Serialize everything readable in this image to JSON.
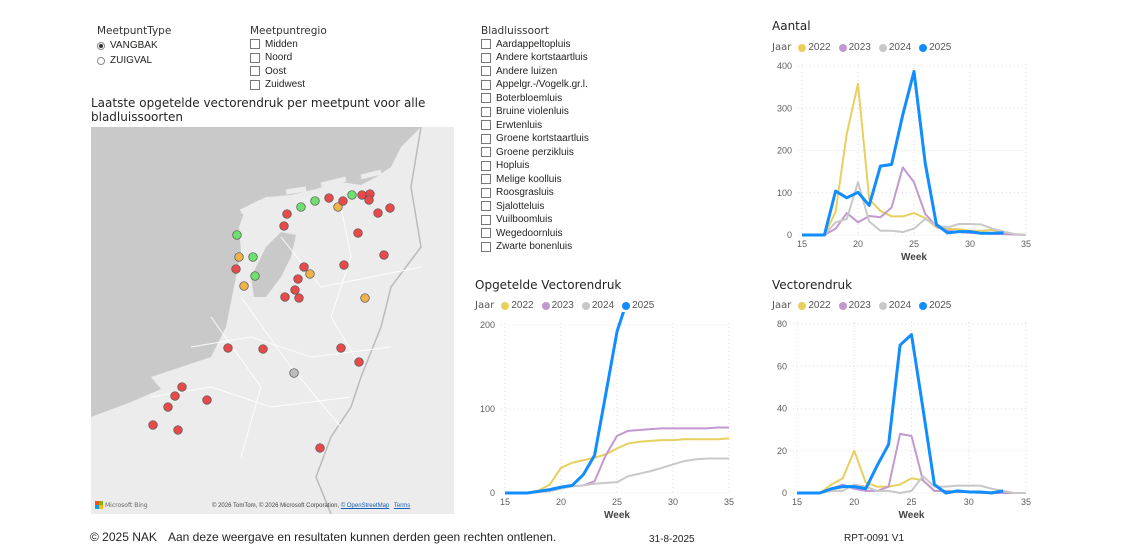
{
  "filters": {
    "meetpunttype": {
      "title": "MeetpuntType",
      "options": [
        {
          "label": "VANGBAK",
          "selected": true
        },
        {
          "label": "ZUIGVAL",
          "selected": false
        }
      ]
    },
    "meetpuntregio": {
      "title": "Meetpuntregio",
      "options": [
        "Midden",
        "Noord",
        "Oost",
        "Zuidwest"
      ]
    },
    "bladluissoort": {
      "title": "Bladluissoort",
      "options": [
        "Aardappeltopluis",
        "Andere kortstaartluis",
        "Andere luizen",
        "Appelgr.-/Vogelk.gr.l.",
        "Boterbloemluis",
        "Bruine violenluis",
        "Erwtenluis",
        "Groene kortstaartluis",
        "Groene perzikluis",
        "Hopluis",
        "Melige koolluis",
        "Roosgrasluis",
        "Sjalotteluis",
        "Vuilboomluis",
        "Wegedoornluis",
        "Zwarte bonenluis"
      ]
    }
  },
  "map": {
    "title": "Laatste opgetelde vectorendruk per meetpunt voor alle bladluissoorten",
    "logo": "Microsoft Bing",
    "attribution": "© 2026 TomTom, © 2026 Microsoft Corporation,",
    "osm_link": "© OpenStreetMap",
    "terms_link": "Terms",
    "marker_colors": {
      "red": "#e84a4a",
      "orange": "#f0b24a",
      "green": "#6ee06e",
      "gray": "#bdbdbd"
    }
  },
  "legend_label": "Jaar",
  "series_colors": {
    "2022": "#e8cf5e",
    "2023": "#c398cf",
    "2024": "#c8c8c8",
    "2025": "#118dff"
  },
  "chart_data": [
    {
      "type": "line",
      "title": "Aantal",
      "xlabel": "Week",
      "ylabel": "",
      "xlim": [
        15,
        35
      ],
      "ylim": [
        0,
        400
      ],
      "xticks": [
        15,
        20,
        25,
        30,
        35
      ],
      "yticks": [
        0,
        100,
        200,
        300,
        400
      ],
      "grid": true,
      "legend": "top-left",
      "series": [
        {
          "name": "2022",
          "x": [
            15,
            16,
            17,
            18,
            19,
            20,
            21,
            22,
            23,
            24,
            25,
            26,
            27,
            28,
            29,
            30,
            31,
            32,
            33,
            34,
            35
          ],
          "values": [
            0,
            0,
            0,
            55,
            240,
            358,
            85,
            57,
            44,
            44,
            52,
            40,
            18,
            14,
            14,
            10,
            10,
            12,
            5,
            2,
            0
          ]
        },
        {
          "name": "2023",
          "x": [
            15,
            16,
            17,
            18,
            19,
            20,
            21,
            22,
            23,
            24,
            25,
            26,
            27,
            28,
            29,
            30,
            31,
            32,
            33,
            34,
            35
          ],
          "values": [
            0,
            0,
            0,
            15,
            52,
            30,
            45,
            42,
            65,
            160,
            125,
            50,
            20,
            10,
            7,
            5,
            4,
            3,
            2,
            1,
            0
          ]
        },
        {
          "name": "2024",
          "x": [
            15,
            16,
            17,
            18,
            19,
            20,
            21,
            22,
            23,
            24,
            25,
            26,
            27,
            28,
            29,
            30,
            31,
            32,
            33,
            34,
            35
          ],
          "values": [
            0,
            0,
            0,
            30,
            38,
            125,
            32,
            10,
            10,
            7,
            15,
            38,
            22,
            18,
            26,
            26,
            25,
            15,
            8,
            2,
            0
          ]
        },
        {
          "name": "2025",
          "x": [
            15,
            16,
            17,
            18,
            19,
            20,
            21,
            22,
            23,
            24,
            25,
            26,
            27,
            28,
            29,
            30,
            31,
            32,
            33
          ],
          "values": [
            0,
            0,
            0,
            104,
            88,
            101,
            70,
            163,
            167,
            285,
            387,
            170,
            25,
            5,
            8,
            8,
            4,
            4,
            5
          ]
        }
      ]
    },
    {
      "type": "line",
      "title": "Opgetelde Vectorendruk",
      "xlabel": "Week",
      "ylabel": "",
      "xlim": [
        15,
        35
      ],
      "ylim": [
        0,
        250
      ],
      "xticks": [
        15,
        20,
        25,
        30,
        35
      ],
      "yticks": [
        0,
        100,
        200
      ],
      "grid": true,
      "legend": "top-left",
      "series": [
        {
          "name": "2022",
          "x": [
            15,
            16,
            17,
            18,
            19,
            20,
            21,
            22,
            23,
            24,
            25,
            26,
            27,
            28,
            29,
            30,
            31,
            32,
            33,
            34,
            35
          ],
          "values": [
            0,
            0,
            0,
            3,
            10,
            30,
            36,
            39,
            42,
            46,
            53,
            59,
            61,
            62,
            63,
            63,
            64,
            64,
            64,
            64,
            65
          ]
        },
        {
          "name": "2023",
          "x": [
            15,
            16,
            17,
            18,
            19,
            20,
            21,
            22,
            23,
            24,
            25,
            26,
            27,
            28,
            29,
            30,
            31,
            32,
            33,
            34,
            35
          ],
          "values": [
            0,
            0,
            0,
            1,
            3,
            6,
            8,
            9,
            14,
            45,
            68,
            74,
            75,
            76,
            77,
            77,
            77,
            77,
            77,
            78,
            78
          ]
        },
        {
          "name": "2024",
          "x": [
            15,
            16,
            17,
            18,
            19,
            20,
            21,
            22,
            23,
            24,
            25,
            26,
            27,
            28,
            29,
            30,
            31,
            32,
            33,
            34,
            35
          ],
          "values": [
            0,
            0,
            0,
            1,
            2,
            5,
            8,
            9,
            11,
            12,
            13,
            20,
            23,
            26,
            30,
            34,
            38,
            40,
            41,
            41,
            41
          ]
        },
        {
          "name": "2025",
          "x": [
            15,
            16,
            17,
            18,
            19,
            20,
            21,
            22,
            23,
            24,
            25,
            26,
            27,
            28,
            29,
            30,
            31,
            32,
            33
          ],
          "values": [
            0,
            0,
            0,
            2,
            4,
            7,
            9,
            22,
            45,
            118,
            192,
            233,
            236,
            237,
            238,
            239,
            239,
            239,
            240
          ]
        }
      ]
    },
    {
      "type": "line",
      "title": "Vectorendruk",
      "xlabel": "Week",
      "ylabel": "",
      "xlim": [
        15,
        35
      ],
      "ylim": [
        0,
        80
      ],
      "xticks": [
        15,
        20,
        25,
        30,
        35
      ],
      "yticks": [
        0,
        20,
        40,
        60,
        80
      ],
      "grid": true,
      "legend": "top-left",
      "series": [
        {
          "name": "2022",
          "x": [
            15,
            16,
            17,
            18,
            19,
            20,
            21,
            22,
            23,
            24,
            25,
            26,
            27,
            28,
            29,
            30,
            31,
            32,
            33,
            34,
            35
          ],
          "values": [
            0,
            0,
            0,
            4,
            7,
            20,
            5,
            3,
            3,
            4,
            7,
            6,
            1,
            1,
            0.5,
            0.5,
            0.5,
            0.5,
            0,
            0,
            0
          ]
        },
        {
          "name": "2023",
          "x": [
            15,
            16,
            17,
            18,
            19,
            20,
            21,
            22,
            23,
            24,
            25,
            26,
            27,
            28,
            29,
            30,
            31,
            32,
            33,
            34,
            35
          ],
          "values": [
            0,
            0,
            0,
            2,
            4,
            2,
            1,
            1,
            3,
            28,
            27,
            6,
            1,
            1,
            0.5,
            0.5,
            0,
            0,
            0,
            0,
            0
          ]
        },
        {
          "name": "2024",
          "x": [
            15,
            16,
            17,
            18,
            19,
            20,
            21,
            22,
            23,
            24,
            25,
            26,
            27,
            28,
            29,
            30,
            31,
            32,
            33,
            34,
            35
          ],
          "values": [
            0,
            0,
            0,
            1,
            1,
            4,
            3,
            1,
            1,
            0,
            1,
            8,
            3,
            3,
            3.5,
            3.5,
            3.5,
            2,
            1,
            0,
            0
          ]
        },
        {
          "name": "2025",
          "x": [
            15,
            16,
            17,
            18,
            19,
            20,
            21,
            22,
            23,
            24,
            25,
            26,
            27,
            28,
            29,
            30,
            31,
            32,
            33
          ],
          "values": [
            0,
            0,
            0,
            2,
            3,
            3,
            2,
            13,
            23,
            70,
            75,
            40,
            4,
            0,
            1,
            0.5,
            0.5,
            0,
            1
          ]
        }
      ]
    }
  ],
  "footer": {
    "copyright": "© 2025 NAK",
    "disclaimer": "Aan deze weergave en resultaten kunnen derden geen rechten ontlenen.",
    "date": "31-8-2025",
    "report_id": "RPT-0091 V1"
  }
}
